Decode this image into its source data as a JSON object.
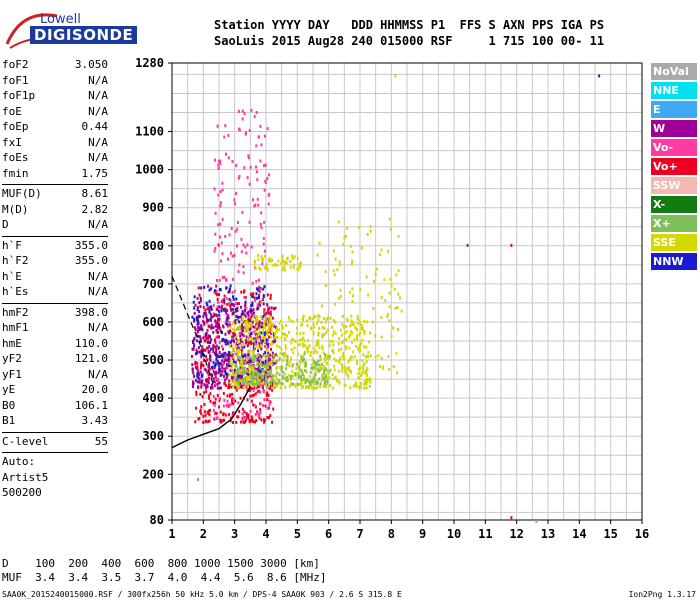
{
  "logo": {
    "line1": "Lowell",
    "line2": "DIGISONDE"
  },
  "header": {
    "row1": "Station YYYY DAY   DDD HHMMSS P1  FFS S AXN PPS IGA PS",
    "row2": "SaoLuis 2015 Aug28 240 015000 RSF     1 715 100 00- 11"
  },
  "params": {
    "group1": [
      {
        "k": "foF2",
        "v": "3.050"
      },
      {
        "k": "foF1",
        "v": "N/A"
      },
      {
        "k": "foF1p",
        "v": "N/A"
      },
      {
        "k": "foE",
        "v": "N/A"
      },
      {
        "k": "foEp",
        "v": "0.44"
      },
      {
        "k": "fxI",
        "v": "N/A"
      },
      {
        "k": "foEs",
        "v": "N/A"
      },
      {
        "k": "fmin",
        "v": "1.75"
      }
    ],
    "group2": [
      {
        "k": "MUF(D)",
        "v": "8.61"
      },
      {
        "k": "M(D)",
        "v": "2.82"
      },
      {
        "k": "D",
        "v": "N/A"
      }
    ],
    "group3": [
      {
        "k": "h`F",
        "v": "355.0"
      },
      {
        "k": "h`F2",
        "v": "355.0"
      },
      {
        "k": "h`E",
        "v": "N/A"
      },
      {
        "k": "h`Es",
        "v": "N/A"
      }
    ],
    "group4": [
      {
        "k": "hmF2",
        "v": "398.0"
      },
      {
        "k": "hmF1",
        "v": "N/A"
      },
      {
        "k": "hmE",
        "v": "110.0"
      },
      {
        "k": "yF2",
        "v": "121.0"
      },
      {
        "k": "yF1",
        "v": "N/A"
      },
      {
        "k": "yE",
        "v": "20.0"
      },
      {
        "k": "B0",
        "v": "106.1"
      },
      {
        "k": "B1",
        "v": "3.43"
      }
    ],
    "group5": [
      {
        "k": "C-level",
        "v": "55"
      }
    ],
    "group6": [
      "Auto:",
      "Artist5",
      "500200"
    ]
  },
  "legend": [
    {
      "label": "NoVal",
      "color": "#aaaaaa"
    },
    {
      "label": "NNE",
      "color": "#00e0f0"
    },
    {
      "label": "E",
      "color": "#3fa9f5"
    },
    {
      "label": "W",
      "color": "#a0009a"
    },
    {
      "label": "Vo-",
      "color": "#ff3aa0"
    },
    {
      "label": "Vo+",
      "color": "#ee0022"
    },
    {
      "label": "SSW",
      "color": "#f4b8b0"
    },
    {
      "label": "X-",
      "color": "#117a11"
    },
    {
      "label": "X+",
      "color": "#7fbf5a"
    },
    {
      "label": "SSE",
      "color": "#d2d800"
    },
    {
      "label": "NNW",
      "color": "#1a1ad0"
    }
  ],
  "bottom": {
    "row1": "D    100  200  400  600  800 1000 1500 3000 [km]",
    "row2": "MUF  3.4  3.4  3.5  3.7  4.0  4.4  5.6  8.6 [MHz]"
  },
  "footer": "SAA0K_2015240015000.RSF / 300fx256h 50 kHz 5.0 km / DPS-4 SAA0K 903 / 2.6 S 315.8 E",
  "version": "Ion2Png 1.3.17",
  "chart_data": {
    "type": "scatter",
    "title": "",
    "xlabel": "",
    "ylabel": "",
    "xlim": [
      1,
      16
    ],
    "ylim": [
      80,
      1280
    ],
    "x_ticks": [
      1,
      2,
      3,
      4,
      5,
      6,
      7,
      8,
      9,
      10,
      11,
      12,
      13,
      14,
      15,
      16
    ],
    "y_ticks": [
      80,
      200,
      300,
      400,
      500,
      600,
      700,
      800,
      900,
      1000,
      1100,
      1280
    ],
    "grid": true,
    "legend_position": "right",
    "clusters": [
      {
        "series": "W",
        "x": [
          1.6,
          4.3
        ],
        "y": [
          430,
          650
        ],
        "n": 520
      },
      {
        "series": "Vo+",
        "x": [
          1.7,
          4.2
        ],
        "y": [
          340,
          700
        ],
        "n": 380
      },
      {
        "series": "Vo-",
        "x": [
          2.3,
          4.1
        ],
        "y": [
          350,
          1160
        ],
        "n": 240
      },
      {
        "series": "NNW",
        "x": [
          1.6,
          4.0
        ],
        "y": [
          450,
          700
        ],
        "n": 200
      },
      {
        "series": "SSE",
        "x": [
          2.8,
          7.3
        ],
        "y": [
          430,
          620
        ],
        "n": 640
      },
      {
        "series": "SSE",
        "x": [
          3.6,
          5.1
        ],
        "y": [
          740,
          780
        ],
        "n": 60
      },
      {
        "series": "X+",
        "x": [
          3.0,
          6.0
        ],
        "y": [
          440,
          520
        ],
        "n": 180
      },
      {
        "series": "SSE",
        "x": [
          5.5,
          8.3
        ],
        "y": [
          470,
          880
        ],
        "n": 120
      }
    ],
    "lines": {
      "dashed": {
        "x": [
          1.0,
          1.3,
          1.6,
          1.9,
          2.1,
          2.3
        ],
        "y": [
          720,
          660,
          600,
          540,
          490,
          440
        ]
      },
      "solid": {
        "x": [
          1.0,
          1.5,
          2.0,
          2.5,
          2.9,
          3.2,
          3.5
        ],
        "y": [
          270,
          290,
          305,
          320,
          345,
          385,
          430
        ]
      }
    },
    "outliers": [
      {
        "series": "X-",
        "x": 10.4,
        "y": 805
      },
      {
        "series": "Vo+",
        "x": 11.8,
        "y": 805
      },
      {
        "series": "NNW",
        "x": 14.6,
        "y": 1250
      },
      {
        "series": "SSE",
        "x": 8.1,
        "y": 1250
      },
      {
        "series": "Vo+",
        "x": 11.8,
        "y": 90
      },
      {
        "series": "X+",
        "x": 12.6,
        "y": 80
      },
      {
        "series": "E",
        "x": 1.8,
        "y": 190
      }
    ]
  }
}
